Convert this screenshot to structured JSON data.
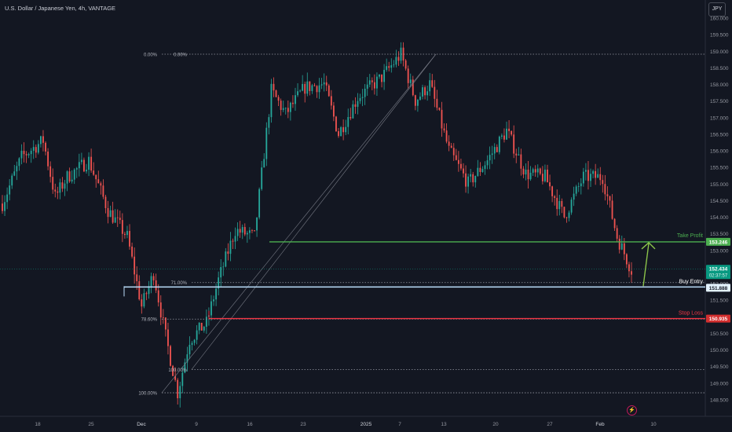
{
  "header": {
    "title": "U.S. Dollar / Japanese Yen, 4h, VANTAGE",
    "currency_button": "JPY"
  },
  "colors": {
    "background": "#131722",
    "candle_up": "#26a69a",
    "candle_down": "#ef5350",
    "take_profit": "#4caf50",
    "buy_entry": "#bbdefb",
    "stop_loss": "#f23645",
    "current_price": "#089981",
    "fib_levels": "#9598a1"
  },
  "chart_data": {
    "type": "candlestick",
    "symbol": "USDJPY",
    "timeframe": "4h",
    "ylim": [
      148.5,
      160.0
    ],
    "y_ticks": [
      "148.500",
      "149.000",
      "149.500",
      "150.000",
      "150.500",
      "151.000",
      "151.500",
      "152.000",
      "152.500",
      "153.000",
      "153.500",
      "154.000",
      "154.500",
      "155.000",
      "155.500",
      "156.000",
      "156.500",
      "157.000",
      "157.500",
      "158.000",
      "158.500",
      "159.000",
      "159.500",
      "160.000"
    ],
    "x_ticks": [
      "18",
      "25",
      "Dec",
      "9",
      "16",
      "23",
      "2025",
      "7",
      "13",
      "20",
      "27",
      "Feb",
      "10"
    ],
    "price_path": [
      {
        "t": 0,
        "p": 154.4
      },
      {
        "t": 8,
        "p": 155.8
      },
      {
        "t": 17,
        "p": 156.3
      },
      {
        "t": 22,
        "p": 154.6
      },
      {
        "t": 27,
        "p": 155.2
      },
      {
        "t": 36,
        "p": 155.7
      },
      {
        "t": 44,
        "p": 154.2
      },
      {
        "t": 52,
        "p": 153.4
      },
      {
        "t": 58,
        "p": 151.3
      },
      {
        "t": 63,
        "p": 152.3
      },
      {
        "t": 68,
        "p": 150.4
      },
      {
        "t": 73,
        "p": 148.7
      },
      {
        "t": 78,
        "p": 150.3
      },
      {
        "t": 85,
        "p": 150.8
      },
      {
        "t": 90,
        "p": 152.1
      },
      {
        "t": 97,
        "p": 153.6
      },
      {
        "t": 105,
        "p": 153.4
      },
      {
        "t": 112,
        "p": 157.8
      },
      {
        "t": 118,
        "p": 157.1
      },
      {
        "t": 126,
        "p": 157.9
      },
      {
        "t": 134,
        "p": 158.0
      },
      {
        "t": 140,
        "p": 156.5
      },
      {
        "t": 148,
        "p": 157.6
      },
      {
        "t": 158,
        "p": 158.2
      },
      {
        "t": 166,
        "p": 158.9
      },
      {
        "t": 172,
        "p": 157.5
      },
      {
        "t": 178,
        "p": 158.0
      },
      {
        "t": 186,
        "p": 156.0
      },
      {
        "t": 194,
        "p": 155.0
      },
      {
        "t": 202,
        "p": 155.7
      },
      {
        "t": 210,
        "p": 156.6
      },
      {
        "t": 218,
        "p": 155.3
      },
      {
        "t": 226,
        "p": 155.2
      },
      {
        "t": 234,
        "p": 154.0
      },
      {
        "t": 242,
        "p": 155.2
      },
      {
        "t": 250,
        "p": 155.2
      },
      {
        "t": 256,
        "p": 153.4
      },
      {
        "t": 262,
        "p": 152.4
      }
    ],
    "fib_levels": [
      {
        "label": "0.00%",
        "price": 158.9
      },
      {
        "label": "71.00%",
        "price": 152.02
      },
      {
        "label": "78.60%",
        "price": 150.92
      },
      {
        "label": "100.00%",
        "price": 149.4
      },
      {
        "label": "100.00%",
        "price": 148.7
      }
    ],
    "fib_top_label2": "0.00%",
    "levels": [
      {
        "name": "Take Profit",
        "price": 153.246,
        "label": "153.246",
        "color": "#4caf50"
      },
      {
        "name": "Buy Entry",
        "price": 151.888,
        "label": "151.888",
        "color": "#bbdefb"
      },
      {
        "name": "Stop Loss",
        "price": 150.935,
        "label": "150.935",
        "color": "#f23645"
      }
    ],
    "current_price": {
      "price": 152.434,
      "label": "152.434",
      "countdown": "02:37:57"
    }
  }
}
